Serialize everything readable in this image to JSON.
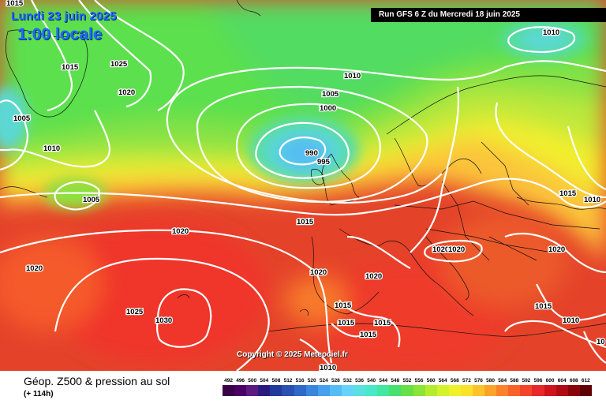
{
  "header": {
    "date": "Lundi 23 juin 2025",
    "time": "1:00 locale",
    "run": "Run GFS 6 Z du Mercredi 18 juin 2025",
    "copyright": "Copyright © 2025 Meteociel.fr"
  },
  "footer": {
    "title": "Géop. Z500 & pression au sol",
    "subtitle": "(+ 114h)"
  },
  "scale": {
    "labels": [
      "492",
      "496",
      "500",
      "504",
      "508",
      "512",
      "516",
      "520",
      "524",
      "528",
      "532",
      "536",
      "540",
      "544",
      "548",
      "552",
      "556",
      "560",
      "564",
      "568",
      "572",
      "576",
      "580",
      "584",
      "588",
      "592",
      "596",
      "600",
      "604",
      "608",
      "612"
    ],
    "colors": [
      "#3a0048",
      "#4a0064",
      "#5a1a80",
      "#2a1a80",
      "#223a9a",
      "#2a50b0",
      "#2e68c8",
      "#3a86dc",
      "#46a0ee",
      "#56bcf6",
      "#66d4fa",
      "#5ae0e0",
      "#48e8c8",
      "#40e8a0",
      "#48e070",
      "#66e046",
      "#8ce436",
      "#b4ec2e",
      "#d4f22a",
      "#eef22a",
      "#fae22a",
      "#fcc42a",
      "#fca42a",
      "#fa822a",
      "#f8622a",
      "#f4442a",
      "#e8282a",
      "#d0141e",
      "#b00a14",
      "#8a040c",
      "#600006"
    ]
  },
  "isobar_labels": [
    {
      "text": "1015"
    },
    {
      "text": "1015"
    },
    {
      "text": "1025"
    },
    {
      "text": "1020"
    },
    {
      "text": "1005"
    },
    {
      "text": "1010"
    },
    {
      "text": "1010"
    },
    {
      "text": "1010"
    },
    {
      "text": "1005"
    },
    {
      "text": "1000"
    },
    {
      "text": "990"
    },
    {
      "text": "995"
    },
    {
      "text": "1005"
    },
    {
      "text": "1015"
    },
    {
      "text": "1015"
    },
    {
      "text": "1010"
    },
    {
      "text": "1020"
    },
    {
      "text": "1020"
    },
    {
      "text": "1020"
    },
    {
      "text": "1020"
    },
    {
      "text": "1020"
    },
    {
      "text": "1020"
    },
    {
      "text": "1020"
    },
    {
      "text": "1025"
    },
    {
      "text": "1030"
    },
    {
      "text": "1015"
    },
    {
      "text": "1015"
    },
    {
      "text": "1015"
    },
    {
      "text": "1015"
    },
    {
      "text": "1015"
    },
    {
      "text": "1010"
    },
    {
      "text": "1010"
    },
    {
      "text": "10"
    }
  ]
}
